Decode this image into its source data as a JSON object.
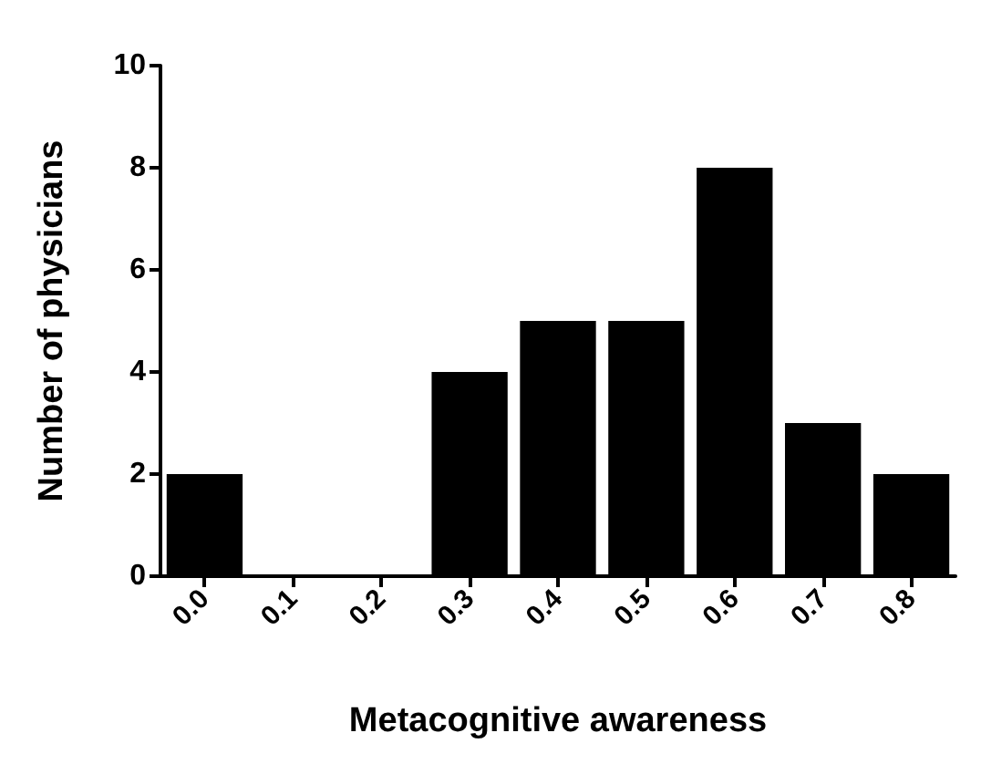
{
  "chart_data": {
    "type": "bar",
    "xlabel": "Metacognitive awareness",
    "ylabel": "Number of physicians",
    "categories": [
      "0.0",
      "0.1",
      "0.2",
      "0.3",
      "0.4",
      "0.5",
      "0.6",
      "0.7",
      "0.8"
    ],
    "values": [
      2,
      0,
      0,
      4,
      5,
      5,
      8,
      3,
      2
    ],
    "color": "#000000",
    "ylim": [
      0,
      10
    ],
    "yticks": [
      0,
      2,
      4,
      6,
      8,
      10
    ],
    "grid": false
  }
}
